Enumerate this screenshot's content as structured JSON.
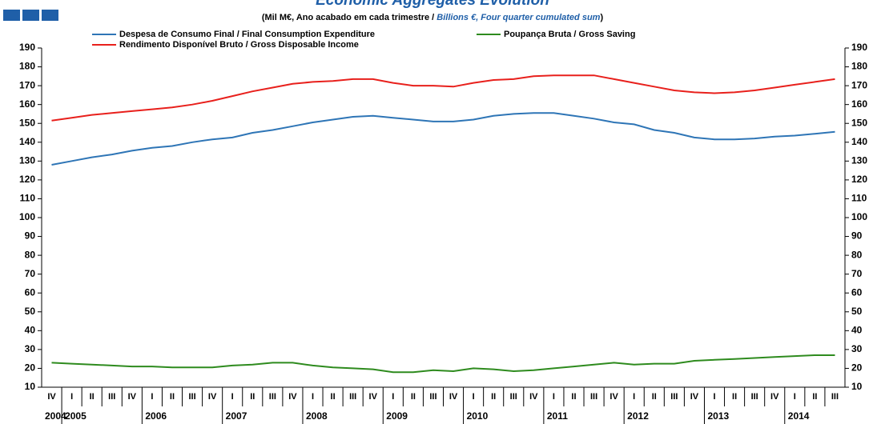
{
  "chart_data": {
    "type": "line",
    "title": "Economic Aggregates Evolution",
    "subtitle": [
      "(Mil M€, Ano acabado em cada trimestre / ",
      "Billions €, Four quarter cumulated sum",
      ")"
    ],
    "categories": [
      "IV",
      "I",
      "II",
      "III",
      "IV",
      "I",
      "II",
      "III",
      "IV",
      "I",
      "II",
      "III",
      "IV",
      "I",
      "II",
      "III",
      "IV",
      "I",
      "II",
      "III",
      "IV",
      "I",
      "II",
      "III",
      "IV",
      "I",
      "II",
      "III",
      "IV",
      "I",
      "II",
      "III",
      "IV",
      "I",
      "II",
      "III",
      "IV",
      "I",
      "II",
      "III"
    ],
    "years": [
      "2004",
      "2005",
      "2006",
      "2007",
      "2008",
      "2009",
      "2010",
      "2011",
      "2012",
      "2013",
      "2014"
    ],
    "series": [
      {
        "name": "Despesa de Consumo Final / Final Consumption Expenditure",
        "color": "#2e75b6",
        "values": [
          128,
          130,
          132,
          133.5,
          135.5,
          137,
          138,
          140,
          141.5,
          142.5,
          145,
          146.5,
          148.5,
          150.5,
          152,
          153.5,
          154,
          153,
          152,
          151,
          151,
          152,
          154,
          155,
          155.5,
          155.5,
          154,
          152.5,
          150.5,
          149.5,
          146.5,
          145,
          142.5,
          141.5,
          141.5,
          142,
          143,
          143.5,
          144.5,
          145.5
        ]
      },
      {
        "name": "Poupança Bruta / Gross Saving",
        "color": "#2e8b1e",
        "values": [
          23,
          22.5,
          22,
          21.5,
          21,
          21,
          20.5,
          20.5,
          20.5,
          21.5,
          22,
          23,
          23,
          21.5,
          20.5,
          20,
          19.5,
          18,
          18,
          19,
          18.5,
          20,
          19.5,
          18.5,
          19,
          20,
          21,
          22,
          23,
          22,
          22.5,
          22.5,
          24,
          24.5,
          25,
          25.5,
          26,
          26.5,
          27,
          27
        ]
      },
      {
        "name": "Rendimento Disponível Bruto / Gross Disposable Income",
        "color": "#e8201c",
        "values": [
          151.5,
          153,
          154.5,
          155.5,
          156.5,
          157.5,
          158.5,
          160,
          162,
          164.5,
          167,
          169,
          171,
          172,
          172.5,
          173.5,
          173.5,
          171.5,
          170,
          170,
          169.5,
          171.5,
          173,
          173.5,
          175,
          175.5,
          175.5,
          175.5,
          173.5,
          171.5,
          169.5,
          167.5,
          166.5,
          166,
          166.5,
          167.5,
          169,
          170.5,
          172,
          173.5
        ]
      }
    ],
    "ylim": [
      10,
      190
    ],
    "yticks": [
      10,
      20,
      30,
      40,
      50,
      60,
      70,
      80,
      90,
      100,
      110,
      120,
      130,
      140,
      150,
      160,
      170,
      180,
      190
    ]
  }
}
